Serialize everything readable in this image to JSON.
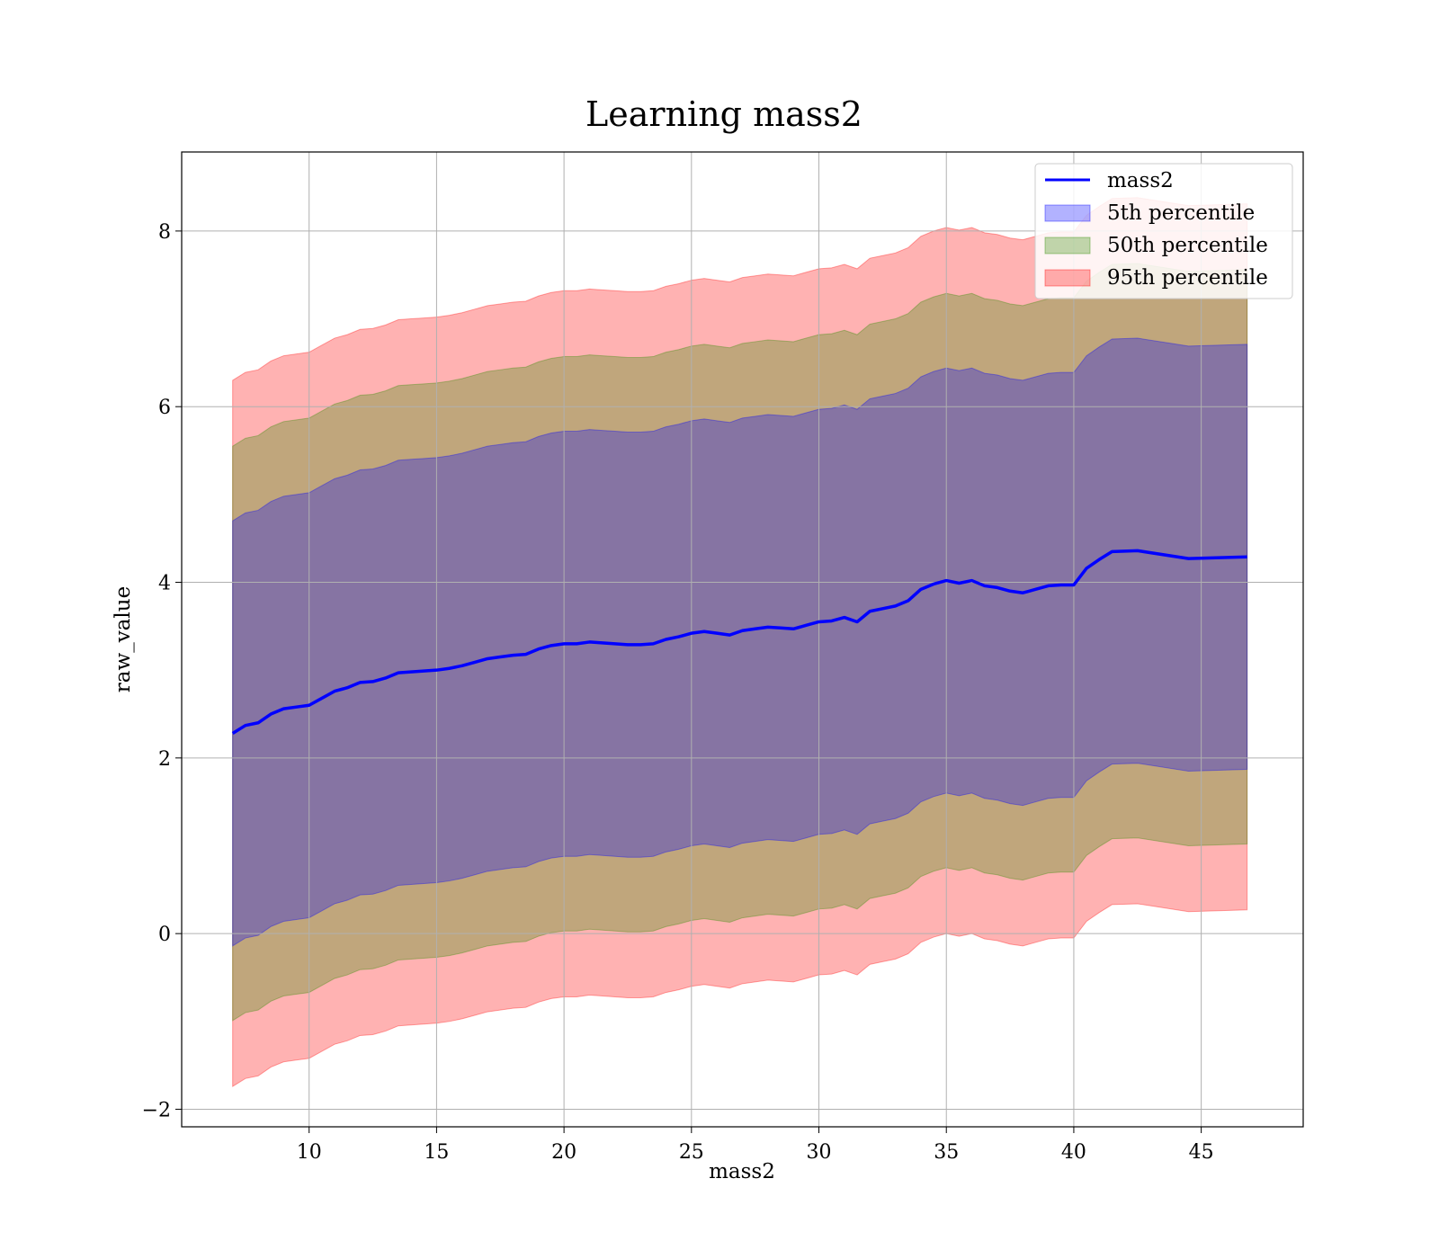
{
  "chart_data": {
    "type": "area",
    "title": "Learning mass2",
    "xlabel": "mass2",
    "ylabel": "raw_value",
    "xlim": [
      5,
      49
    ],
    "ylim": [
      -2.2,
      8.9
    ],
    "xticks": [
      10,
      15,
      20,
      25,
      30,
      35,
      40,
      45
    ],
    "yticks": [
      -2,
      0,
      2,
      4,
      6,
      8
    ],
    "ytick_labels": [
      "−2",
      "0",
      "2",
      "4",
      "6",
      "8"
    ],
    "grid": true,
    "legend_position": "top-right",
    "x": [
      7,
      7.5,
      8,
      8.5,
      9,
      9.5,
      10,
      10.5,
      11,
      11.5,
      12,
      12.5,
      13,
      13.5,
      14,
      14.5,
      15,
      15.5,
      16,
      16.5,
      17,
      17.5,
      18,
      18.5,
      19,
      19.5,
      20,
      20.5,
      21,
      21.5,
      22,
      22.5,
      23,
      23.5,
      24,
      24.5,
      25,
      25.5,
      26,
      26.5,
      27,
      27.5,
      28,
      28.5,
      29,
      29.5,
      30,
      30.5,
      31,
      31.5,
      32,
      32.5,
      33,
      33.5,
      34,
      34.5,
      35,
      35.5,
      36,
      36.5,
      37,
      37.5,
      38,
      38.5,
      39,
      39.5,
      40,
      40.5,
      41,
      41.5,
      42.5,
      44.5,
      46.8
    ],
    "series": [
      {
        "name": "mass2",
        "color": "#0000ff",
        "values": [
          2.28,
          2.37,
          2.4,
          2.5,
          2.56,
          2.58,
          2.6,
          2.68,
          2.76,
          2.8,
          2.86,
          2.87,
          2.91,
          2.97,
          2.98,
          2.99,
          3.0,
          3.02,
          3.05,
          3.09,
          3.13,
          3.15,
          3.17,
          3.18,
          3.24,
          3.28,
          3.3,
          3.3,
          3.32,
          3.31,
          3.3,
          3.29,
          3.29,
          3.3,
          3.35,
          3.38,
          3.42,
          3.44,
          3.42,
          3.4,
          3.45,
          3.47,
          3.49,
          3.48,
          3.47,
          3.51,
          3.55,
          3.56,
          3.6,
          3.55,
          3.67,
          3.7,
          3.73,
          3.79,
          3.92,
          3.98,
          4.02,
          3.99,
          4.02,
          3.96,
          3.94,
          3.9,
          3.88,
          3.92,
          3.96,
          3.97,
          3.97,
          4.16,
          4.26,
          4.35,
          4.36,
          4.27,
          4.29
        ]
      }
    ],
    "bands": [
      {
        "name": "5th percentile",
        "color": "#0000ff",
        "opacity": 0.3,
        "half_width": 2.42
      },
      {
        "name": "50th percentile",
        "color": "#2e8b00",
        "opacity": 0.3,
        "half_width": 3.27
      },
      {
        "name": "95th percentile",
        "color": "#ff0000",
        "opacity": 0.3,
        "half_width": 4.02
      }
    ]
  }
}
